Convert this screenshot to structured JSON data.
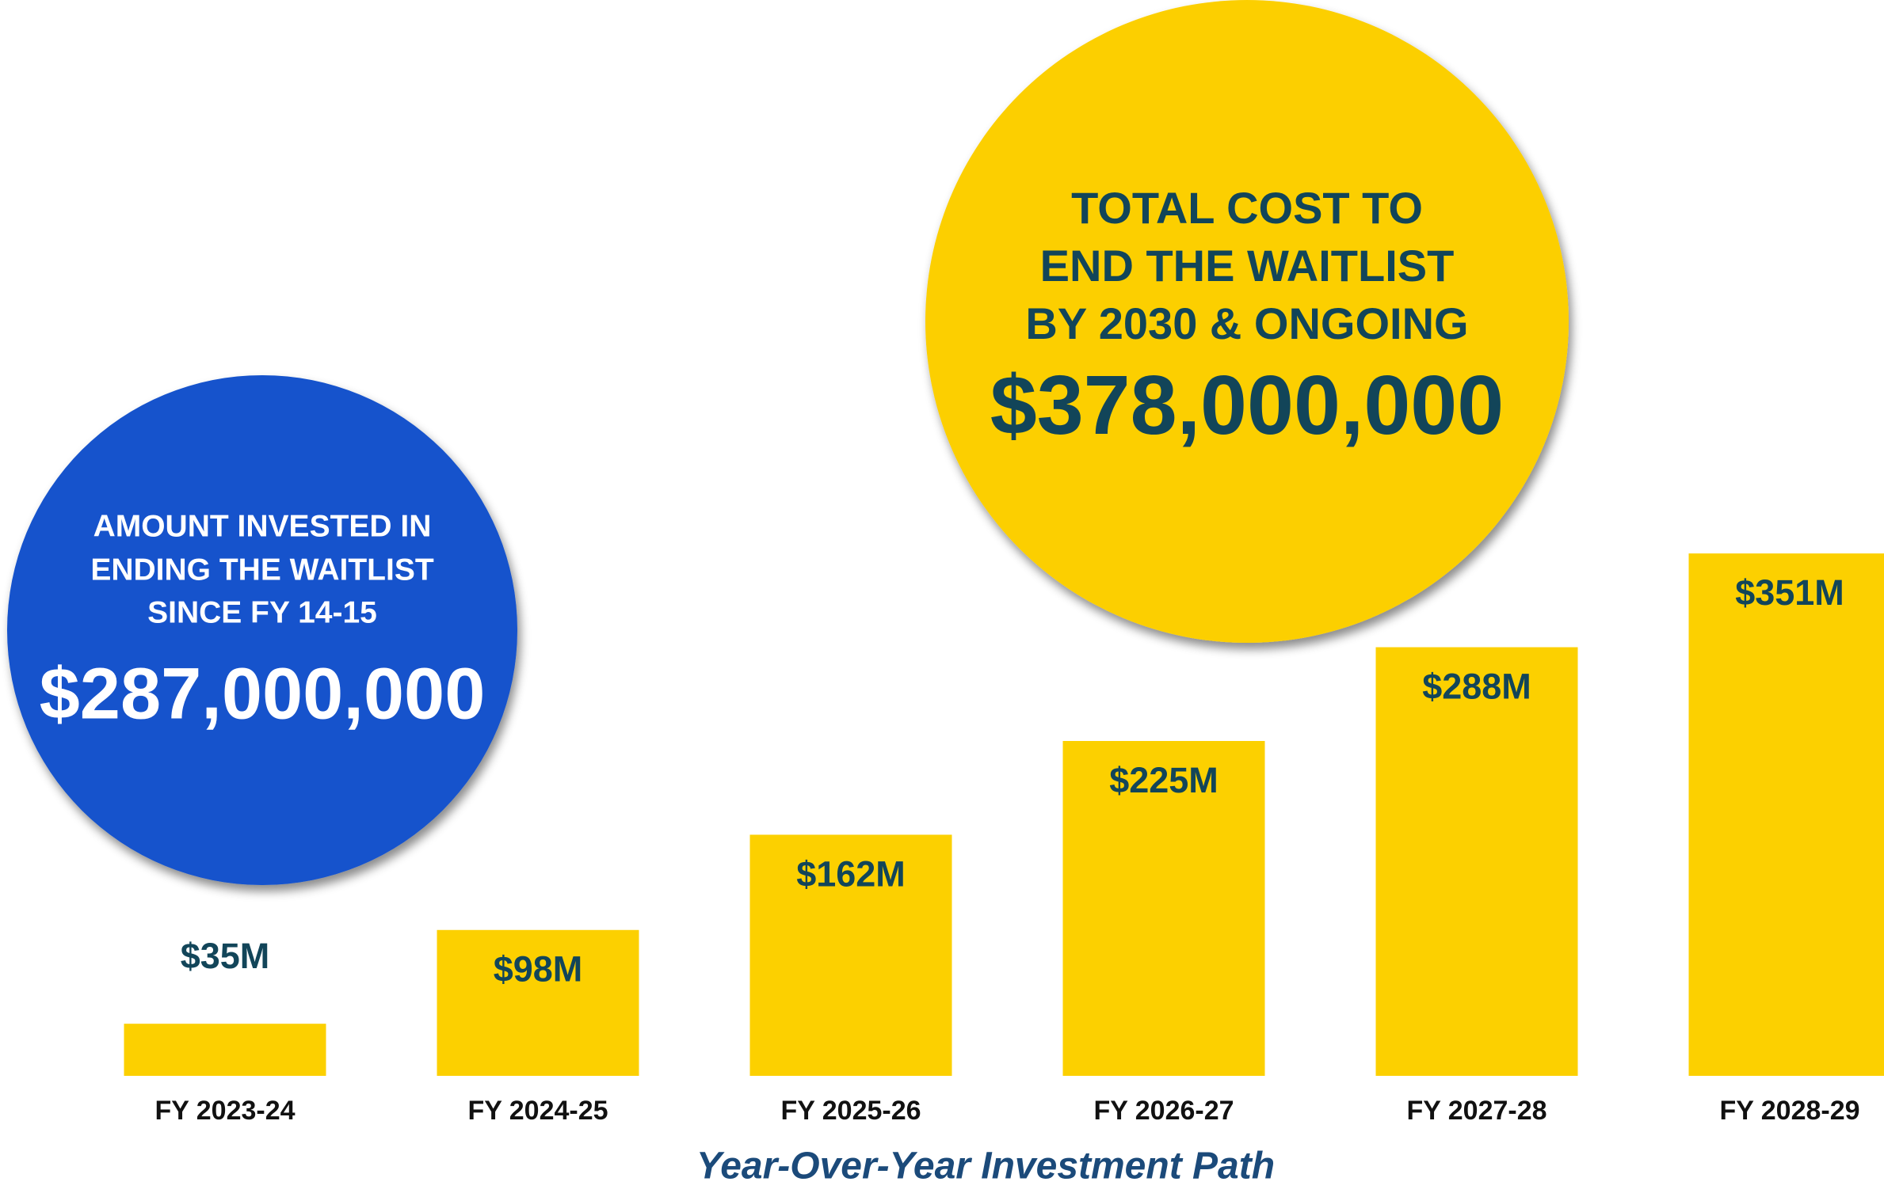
{
  "chart_data": {
    "type": "bar",
    "categories": [
      "FY 2023-24",
      "FY 2024-25",
      "FY 2025-26",
      "FY 2026-27",
      "FY 2027-28",
      "FY 2028-29"
    ],
    "values": [
      35,
      98,
      162,
      225,
      288,
      351
    ],
    "value_labels": [
      "$35M",
      "$98M",
      "$162M",
      "$225M",
      "$288M",
      "$351M"
    ],
    "color": "#fcd000",
    "x_label": "Year-Over-Year Investment Path",
    "annotations": [
      {
        "lines": [
          "AMOUNT INVESTED IN",
          "ENDING THE WAITLIST",
          "SINCE FY 14-15"
        ],
        "amount": "$287,000,000",
        "color": "#1352cc"
      },
      {
        "lines": [
          "TOTAL COST TO",
          "END THE WAITLIST",
          "BY 2030 & ONGOING"
        ],
        "amount": "$378,000,000",
        "color": "#fccf00"
      }
    ]
  }
}
